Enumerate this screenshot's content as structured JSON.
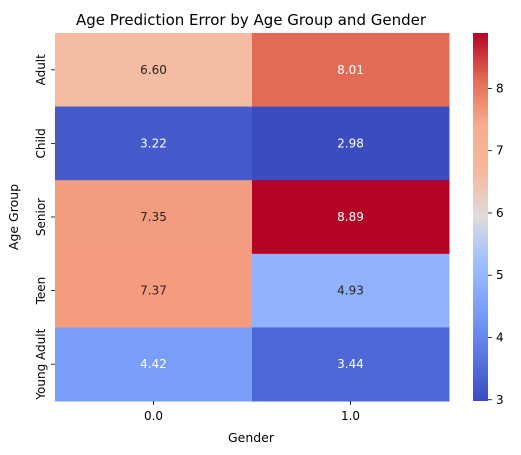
{
  "chart_data": {
    "type": "heatmap",
    "title": "Age Prediction Error by Age Group and Gender",
    "xlabel": "Gender",
    "ylabel": "Age Group",
    "x_categories": [
      "0.0",
      "1.0"
    ],
    "y_categories": [
      "Adult",
      "Child",
      "Senior",
      "Teen",
      "Young Adult"
    ],
    "values": [
      [
        6.6,
        8.01
      ],
      [
        3.22,
        2.98
      ],
      [
        7.35,
        8.89
      ],
      [
        7.37,
        4.93
      ],
      [
        4.42,
        3.44
      ]
    ],
    "value_labels": [
      [
        "6.60",
        "8.01"
      ],
      [
        "3.22",
        "2.98"
      ],
      [
        "7.35",
        "8.89"
      ],
      [
        "7.37",
        "4.93"
      ],
      [
        "4.42",
        "3.44"
      ]
    ],
    "colormap": "coolwarm",
    "colorbar_range": [
      2.98,
      8.89
    ],
    "colorbar_ticks": [
      "3",
      "4",
      "5",
      "6",
      "7",
      "8"
    ],
    "annotation_colors": {
      "light": "#ffffff",
      "dark": "#262626"
    }
  }
}
